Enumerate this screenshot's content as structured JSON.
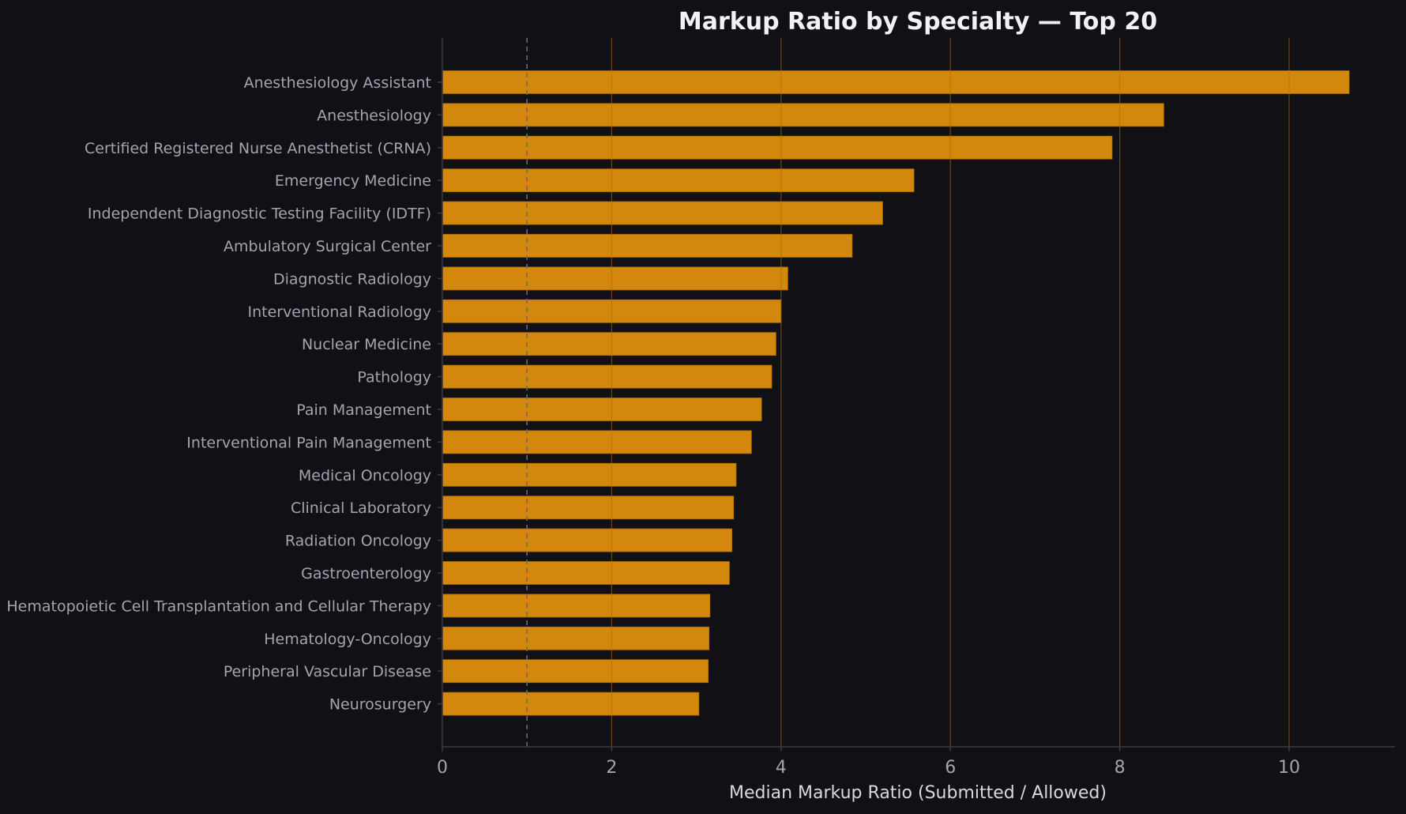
{
  "chart_data": {
    "type": "bar",
    "orientation": "horizontal",
    "title": "Markup Ratio by Specialty — Top 20",
    "xlabel": "Median Markup Ratio (Submitted / Allowed)",
    "ylabel": "",
    "xlim": [
      0,
      11.25
    ],
    "xticks": [
      0,
      2,
      4,
      6,
      8,
      10
    ],
    "xtick_labels": [
      "0",
      "2",
      "4",
      "6",
      "8",
      "10"
    ],
    "grid": "vertical",
    "reference_line": {
      "x": 1,
      "style": "dashed"
    },
    "categories": [
      "Anesthesiology Assistant",
      "Anesthesiology",
      "Certified Registered Nurse Anesthetist (CRNA)",
      "Emergency Medicine",
      "Independent Diagnostic Testing Facility (IDTF)",
      "Ambulatory Surgical Center",
      "Diagnostic Radiology",
      "Interventional Radiology",
      "Nuclear Medicine",
      "Pathology",
      "Pain Management",
      "Interventional Pain Management",
      "Medical Oncology",
      "Clinical Laboratory",
      "Radiation Oncology",
      "Gastroenterology",
      "Hematopoietic Cell Transplantation and Cellular Therapy",
      "Hematology-Oncology",
      "Peripheral Vascular Disease",
      "Neurosurgery"
    ],
    "values": [
      10.71,
      8.52,
      7.91,
      5.57,
      5.2,
      4.84,
      4.08,
      4.0,
      3.94,
      3.89,
      3.77,
      3.65,
      3.47,
      3.44,
      3.42,
      3.39,
      3.16,
      3.15,
      3.14,
      3.03
    ],
    "colors": {
      "background": "#111014",
      "bar": "#d3870c",
      "bar_edge": "#a86a08",
      "text": "#a4a4b0",
      "title": "#f2f2f4",
      "axis_label": "#d8d8de",
      "axis": "#3a3a42",
      "grid": "#1d1c22",
      "grid_over_bar": "#a86a0a",
      "reference_line": "#6a6a74"
    }
  }
}
